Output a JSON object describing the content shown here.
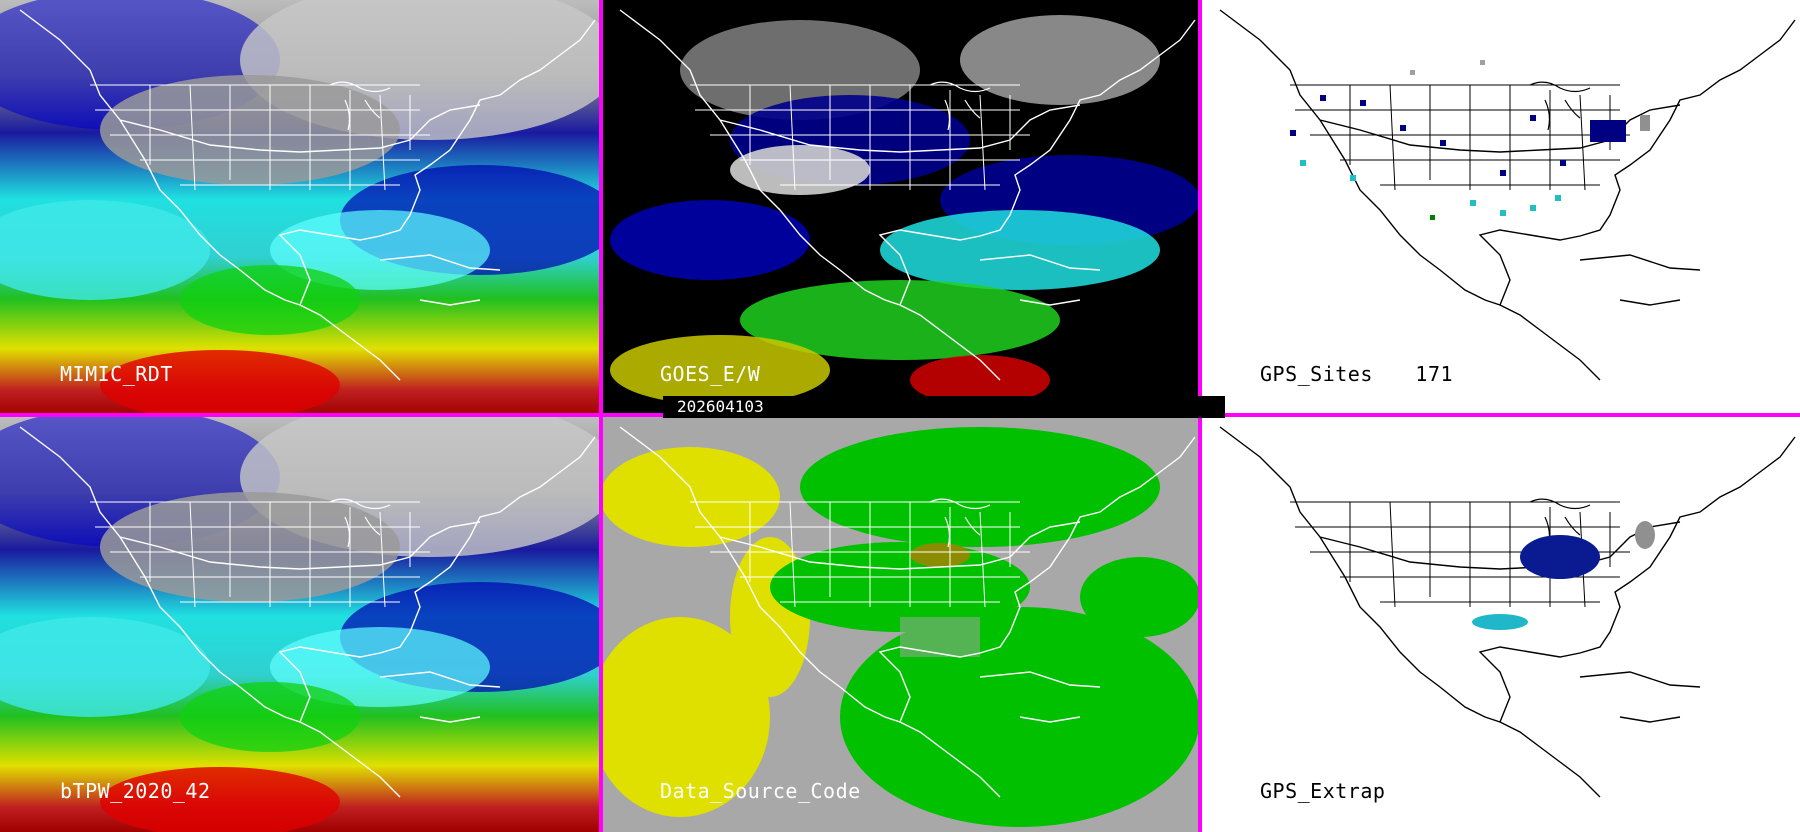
{
  "panels": {
    "mimic_rdt": {
      "label": "MIMIC_RDT"
    },
    "goes_ew": {
      "label": "GOES_E/W"
    },
    "gps_sites": {
      "label": "GPS_Sites",
      "count": "171"
    },
    "btpw": {
      "label": "bTPW_2020_42"
    },
    "data_source_code": {
      "label": "Data_Source_Code"
    },
    "gps_extrap": {
      "label": "GPS_Extrap"
    }
  },
  "timestamp": "202604103",
  "colors": {
    "divider": "#ff00ff",
    "tpw_scale": [
      "#ffffff",
      "#a0a0a0",
      "#000080",
      "#0000ff",
      "#00ffff",
      "#00cc00",
      "#ffff00",
      "#ff0000"
    ],
    "data_source": [
      "#a8a8a8",
      "#e0e000",
      "#00c000",
      "#8c8c00"
    ]
  }
}
